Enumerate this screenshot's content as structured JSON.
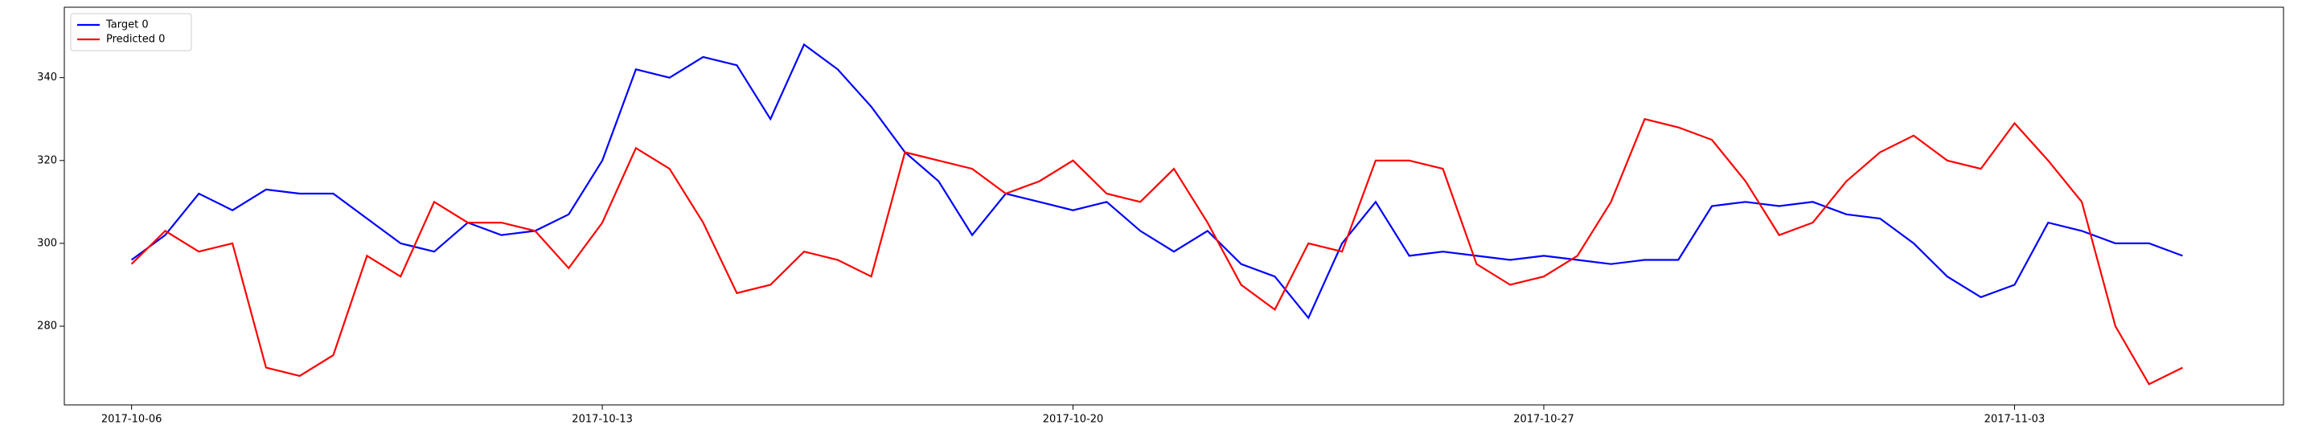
{
  "chart_data": {
    "type": "line",
    "x": [
      "2017-10-06 00:00",
      "2017-10-06 12:00",
      "2017-10-07 00:00",
      "2017-10-07 12:00",
      "2017-10-08 00:00",
      "2017-10-08 12:00",
      "2017-10-09 00:00",
      "2017-10-09 12:00",
      "2017-10-10 00:00",
      "2017-10-10 12:00",
      "2017-10-11 00:00",
      "2017-10-11 12:00",
      "2017-10-12 00:00",
      "2017-10-12 12:00",
      "2017-10-13 00:00",
      "2017-10-13 12:00",
      "2017-10-14 00:00",
      "2017-10-14 12:00",
      "2017-10-15 00:00",
      "2017-10-15 12:00",
      "2017-10-16 00:00",
      "2017-10-16 12:00",
      "2017-10-17 00:00",
      "2017-10-17 12:00",
      "2017-10-18 00:00",
      "2017-10-18 12:00",
      "2017-10-19 00:00",
      "2017-10-19 12:00",
      "2017-10-20 00:00",
      "2017-10-20 12:00",
      "2017-10-21 00:00",
      "2017-10-21 12:00",
      "2017-10-22 00:00",
      "2017-10-22 12:00",
      "2017-10-23 00:00",
      "2017-10-23 12:00",
      "2017-10-24 00:00",
      "2017-10-24 12:00",
      "2017-10-25 00:00",
      "2017-10-25 12:00",
      "2017-10-26 00:00",
      "2017-10-26 12:00",
      "2017-10-27 00:00",
      "2017-10-27 12:00",
      "2017-10-28 00:00",
      "2017-10-28 12:00",
      "2017-10-29 00:00",
      "2017-10-29 12:00",
      "2017-10-30 00:00",
      "2017-10-30 12:00",
      "2017-10-31 00:00",
      "2017-10-31 12:00",
      "2017-11-01 00:00",
      "2017-11-01 12:00",
      "2017-11-02 00:00",
      "2017-11-02 12:00",
      "2017-11-03 00:00",
      "2017-11-03 12:00",
      "2017-11-04 00:00",
      "2017-11-04 12:00",
      "2017-11-05 00:00",
      "2017-11-05 12:00"
    ],
    "series": [
      {
        "name": "Target 0",
        "color": "#0000ff",
        "values": [
          296,
          302,
          312,
          308,
          313,
          312,
          312,
          306,
          300,
          298,
          305,
          302,
          303,
          307,
          320,
          342,
          340,
          345,
          343,
          330,
          348,
          342,
          333,
          322,
          315,
          302,
          312,
          310,
          308,
          310,
          303,
          298,
          303,
          295,
          292,
          282,
          300,
          310,
          297,
          298,
          297,
          296,
          297,
          296,
          295,
          296,
          296,
          309,
          310,
          309,
          310,
          307,
          306,
          300,
          292,
          287,
          290,
          305,
          303,
          300,
          300,
          297
        ]
      },
      {
        "name": "Predicted 0",
        "color": "#ff0000",
        "values": [
          295,
          303,
          298,
          300,
          270,
          268,
          273,
          297,
          292,
          310,
          305,
          305,
          303,
          294,
          305,
          323,
          318,
          305,
          288,
          290,
          298,
          296,
          292,
          322,
          320,
          318,
          312,
          315,
          320,
          312,
          310,
          318,
          305,
          290,
          284,
          300,
          298,
          320,
          320,
          318,
          295,
          290,
          292,
          297,
          310,
          330,
          328,
          325,
          315,
          302,
          305,
          315,
          322,
          326,
          320,
          318,
          329,
          320,
          310,
          280,
          266,
          270
        ]
      }
    ],
    "xlim": [
      "2017-10-05 00:00",
      "2017-11-07 00:00"
    ],
    "xticks": [
      "2017-10-06",
      "2017-10-13",
      "2017-10-20",
      "2017-10-27",
      "2017-11-03"
    ],
    "ylim": [
      261,
      357
    ],
    "yticks": [
      280,
      300,
      320,
      340
    ],
    "legend": "upper left"
  }
}
